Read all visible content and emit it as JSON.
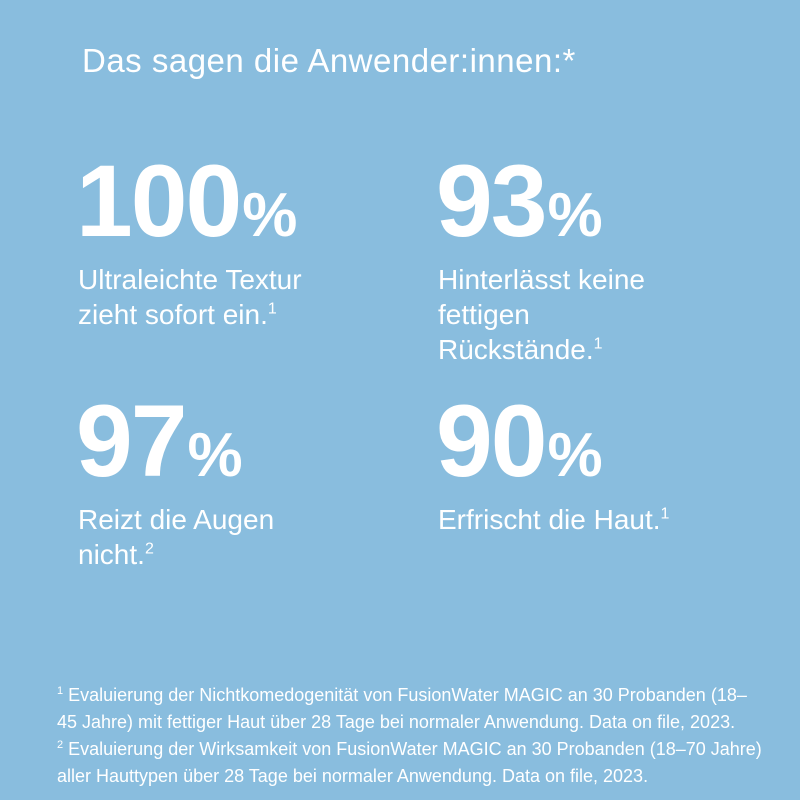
{
  "canvas": {
    "background_color": "#89BDDE",
    "text_color": "#FFFFFF"
  },
  "title": "Das sagen die Anwender:innen:*",
  "stats": [
    {
      "value": "100",
      "unit": "%",
      "description": "Ultraleichte Textur\nzieht sofort ein.",
      "footnote_ref": "1"
    },
    {
      "value": "93",
      "unit": "%",
      "description": "Hinterlässt keine\nfettigen\nRückstände.",
      "footnote_ref": "1"
    },
    {
      "value": "97",
      "unit": "%",
      "description": "Reizt die Augen\nnicht.",
      "footnote_ref": "2"
    },
    {
      "value": "90",
      "unit": "%",
      "description": "Erfrischt die Haut.",
      "footnote_ref": "1"
    }
  ],
  "footnotes": [
    {
      "ref": "1",
      "text": "Evaluierung der Nichtkomedogenität von FusionWater MAGIC an 30 Probanden (18–45 Jahre) mit fettiger Haut über 28 Tage bei normaler Anwendung. Data on file, 2023."
    },
    {
      "ref": "2",
      "text": "Evaluierung der Wirksamkeit von FusionWater MAGIC an 30 Probanden (18–70 Jahre) aller Hauttypen über 28 Tage bei normaler Anwendung. Data on file, 2023."
    }
  ]
}
